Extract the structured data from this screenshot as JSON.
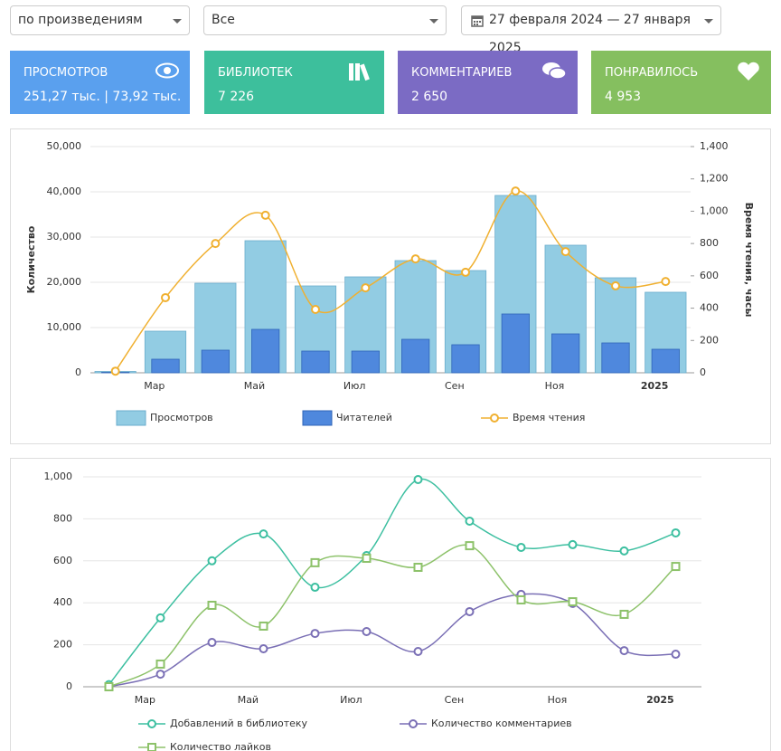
{
  "filters": {
    "work": "по произведениям",
    "scope": "Все",
    "date_range": "27 февраля 2024 — 27 января 2025"
  },
  "stats": [
    {
      "label": "ПРОСМОТРОВ",
      "value": "251,27 тыс. | 73,92 тыс."
    },
    {
      "label": "БИБЛИОТЕК",
      "value": "7 226"
    },
    {
      "label": "КОММЕНТАРИЕВ",
      "value": "2 650"
    },
    {
      "label": "ПОНРАВИЛОСЬ",
      "value": "4 953"
    }
  ],
  "chart_data": [
    {
      "type": "combo",
      "categories": [
        null,
        "Мар",
        null,
        "Май",
        null,
        "Июл",
        null,
        "Сен",
        null,
        "Ноя",
        null,
        "2025"
      ],
      "y_label": "Количество",
      "y2_label": "Время чтения, часы",
      "ylim": [
        0,
        50000
      ],
      "yticks": [
        0,
        {
          "value": 10000,
          "label": "10,000"
        },
        {
          "value": 20000,
          "label": "20,000"
        },
        {
          "value": 30000,
          "label": "30,000"
        },
        {
          "value": 40000,
          "label": "40,000"
        },
        {
          "value": 50000,
          "label": "50,000"
        }
      ],
      "y2lim": [
        0,
        1400
      ],
      "y2ticks": [
        0,
        200,
        400,
        600,
        800,
        {
          "value": 1000,
          "label": "1,000"
        },
        {
          "value": 1200,
          "label": "1,200"
        },
        {
          "value": 1400,
          "label": "1,400"
        }
      ],
      "grid": true,
      "series": [
        {
          "name": "Просмотров",
          "type": "bar",
          "color": "#92cce3",
          "values": [
            300,
            9200,
            19800,
            29200,
            19200,
            21200,
            24800,
            22600,
            39200,
            28200,
            21000,
            17800
          ]
        },
        {
          "name": "Читателей",
          "type": "bar",
          "color": "#4f88dd",
          "values": [
            100,
            3000,
            5000,
            9600,
            4800,
            4800,
            7400,
            6200,
            13000,
            8600,
            6600,
            5200
          ]
        },
        {
          "name": "Время чтения",
          "type": "line",
          "axis": "y2",
          "color": "#f0b030",
          "marker": "circle",
          "values": [
            10,
            465,
            800,
            975,
            392,
            526,
            705,
            622,
            1125,
            750,
            538,
            565
          ]
        }
      ]
    },
    {
      "type": "line",
      "categories": [
        null,
        "Мар",
        null,
        "Май",
        null,
        "Июл",
        null,
        "Сен",
        null,
        "Ноя",
        null,
        "2025"
      ],
      "ylim": [
        0,
        1000
      ],
      "yticks": [
        0,
        200,
        400,
        600,
        800,
        {
          "value": 1000,
          "label": "1,000"
        }
      ],
      "grid": true,
      "series": [
        {
          "name": "Добавлений в библиотеку",
          "color": "#3cbfa0",
          "marker": "circle",
          "values": [
            10,
            328,
            600,
            728,
            474,
            625,
            987,
            789,
            664,
            677,
            647,
            733
          ]
        },
        {
          "name": "Количество комментариев",
          "color": "#7a6fb5",
          "marker": "circle",
          "values": [
            0,
            60,
            211,
            181,
            254,
            263,
            168,
            358,
            440,
            397,
            172,
            155
          ]
        },
        {
          "name": "Количество лайков",
          "color": "#8dc26a",
          "marker": "square",
          "values": [
            0,
            108,
            388,
            289,
            591,
            612,
            569,
            672,
            414,
            405,
            345,
            573
          ]
        }
      ]
    }
  ]
}
